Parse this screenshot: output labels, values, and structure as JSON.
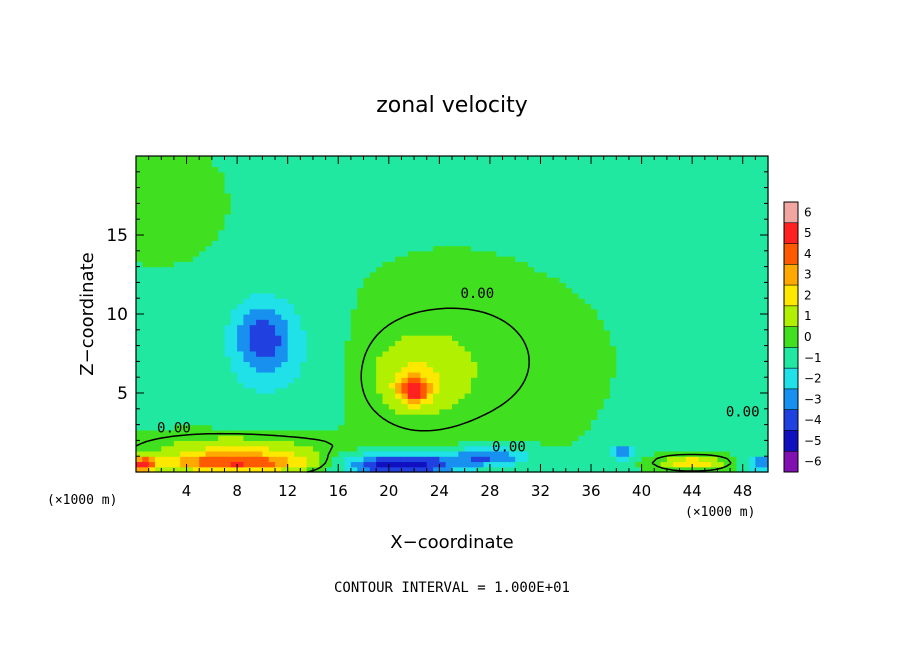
{
  "chart_data": {
    "type": "heatmap",
    "title": "zonal velocity",
    "xlabel": "X−coordinate",
    "ylabel": "Z−coordinate",
    "x_unit_left": "(×1000 m)",
    "x_unit_right": "(×1000 m)",
    "footer": "CONTOUR INTERVAL = 1.000E+01",
    "xlim": [
      0,
      50
    ],
    "ylim": [
      0,
      20
    ],
    "x_ticks": [
      4,
      8,
      12,
      16,
      20,
      24,
      28,
      32,
      36,
      40,
      44,
      48
    ],
    "x_tick_labels": [
      "4",
      "8",
      "12",
      "16",
      "20",
      "24",
      "28",
      "32",
      "36",
      "40",
      "44",
      "48"
    ],
    "y_ticks": [
      5,
      10,
      15
    ],
    "y_tick_labels": [
      "5",
      "10",
      "15"
    ],
    "colorbar": {
      "levels": [
        6,
        5,
        4,
        3,
        2,
        1,
        0,
        -1,
        -2,
        -3,
        -4,
        -5,
        -6
      ],
      "labels": [
        "6",
        "5",
        "4",
        "3",
        "2",
        "1",
        "0",
        "−1",
        "−2",
        "−3",
        "−4",
        "−5",
        "−6"
      ],
      "colors": [
        "#f2a6a0",
        "#ff2020",
        "#ff5a00",
        "#ffa800",
        "#ffe800",
        "#b0f000",
        "#40e020",
        "#20e8a0",
        "#20e0e8",
        "#1890f0",
        "#2040e0",
        "#1010c0",
        "#8010b0"
      ]
    },
    "contour_label": "0.00",
    "contour_labels": [
      {
        "x": 3,
        "z": 2.5,
        "text": "0.00"
      },
      {
        "x": 27,
        "z": 11,
        "text": "0.00"
      },
      {
        "x": 29.5,
        "z": 1.3,
        "text": "0.00"
      },
      {
        "x": 48,
        "z": 3.5,
        "text": "0.00"
      }
    ],
    "background_value": -0.6,
    "features": [
      {
        "x": 10,
        "z": 8.5,
        "sx": 2.2,
        "sz": 2.2,
        "value": -2.8
      },
      {
        "x": 11,
        "z": 7.5,
        "sx": 4.5,
        "sz": 4.0,
        "value": -1.0
      },
      {
        "x": 22,
        "z": 5.2,
        "sx": 1.2,
        "sz": 0.8,
        "value": 4.2
      },
      {
        "x": 22,
        "z": 6.0,
        "sx": 3.5,
        "sz": 2.5,
        "value": 1.6
      },
      {
        "x": 26,
        "z": 7.0,
        "sx": 8.0,
        "sz": 5.0,
        "value": 0.9
      },
      {
        "x": 8,
        "z": 0.6,
        "sx": 6.0,
        "sz": 0.6,
        "value": 5.0
      },
      {
        "x": 8,
        "z": 1.6,
        "sx": 7.0,
        "sz": 0.8,
        "value": 2.0
      },
      {
        "x": 21,
        "z": 0.5,
        "sx": 4.5,
        "sz": 0.7,
        "value": -5.0
      },
      {
        "x": 28,
        "z": 1.0,
        "sx": 3.0,
        "sz": 0.6,
        "value": -3.0
      },
      {
        "x": 38.5,
        "z": 1.3,
        "sx": 1.0,
        "sz": 0.5,
        "value": -2.5
      },
      {
        "x": 44,
        "z": 0.6,
        "sx": 2.5,
        "sz": 0.4,
        "value": 3.0
      },
      {
        "x": 49.5,
        "z": 0.6,
        "sx": 1.2,
        "sz": 0.5,
        "value": -3.0
      },
      {
        "x": 0.5,
        "z": 0.5,
        "sx": 1.0,
        "sz": 0.5,
        "value": 5.0
      },
      {
        "x": 40,
        "z": 18,
        "sx": 8.0,
        "sz": 4.0,
        "value": -0.6
      },
      {
        "x": 2,
        "z": 17,
        "sx": 4.0,
        "sz": 3.0,
        "value": 0.6
      }
    ]
  }
}
